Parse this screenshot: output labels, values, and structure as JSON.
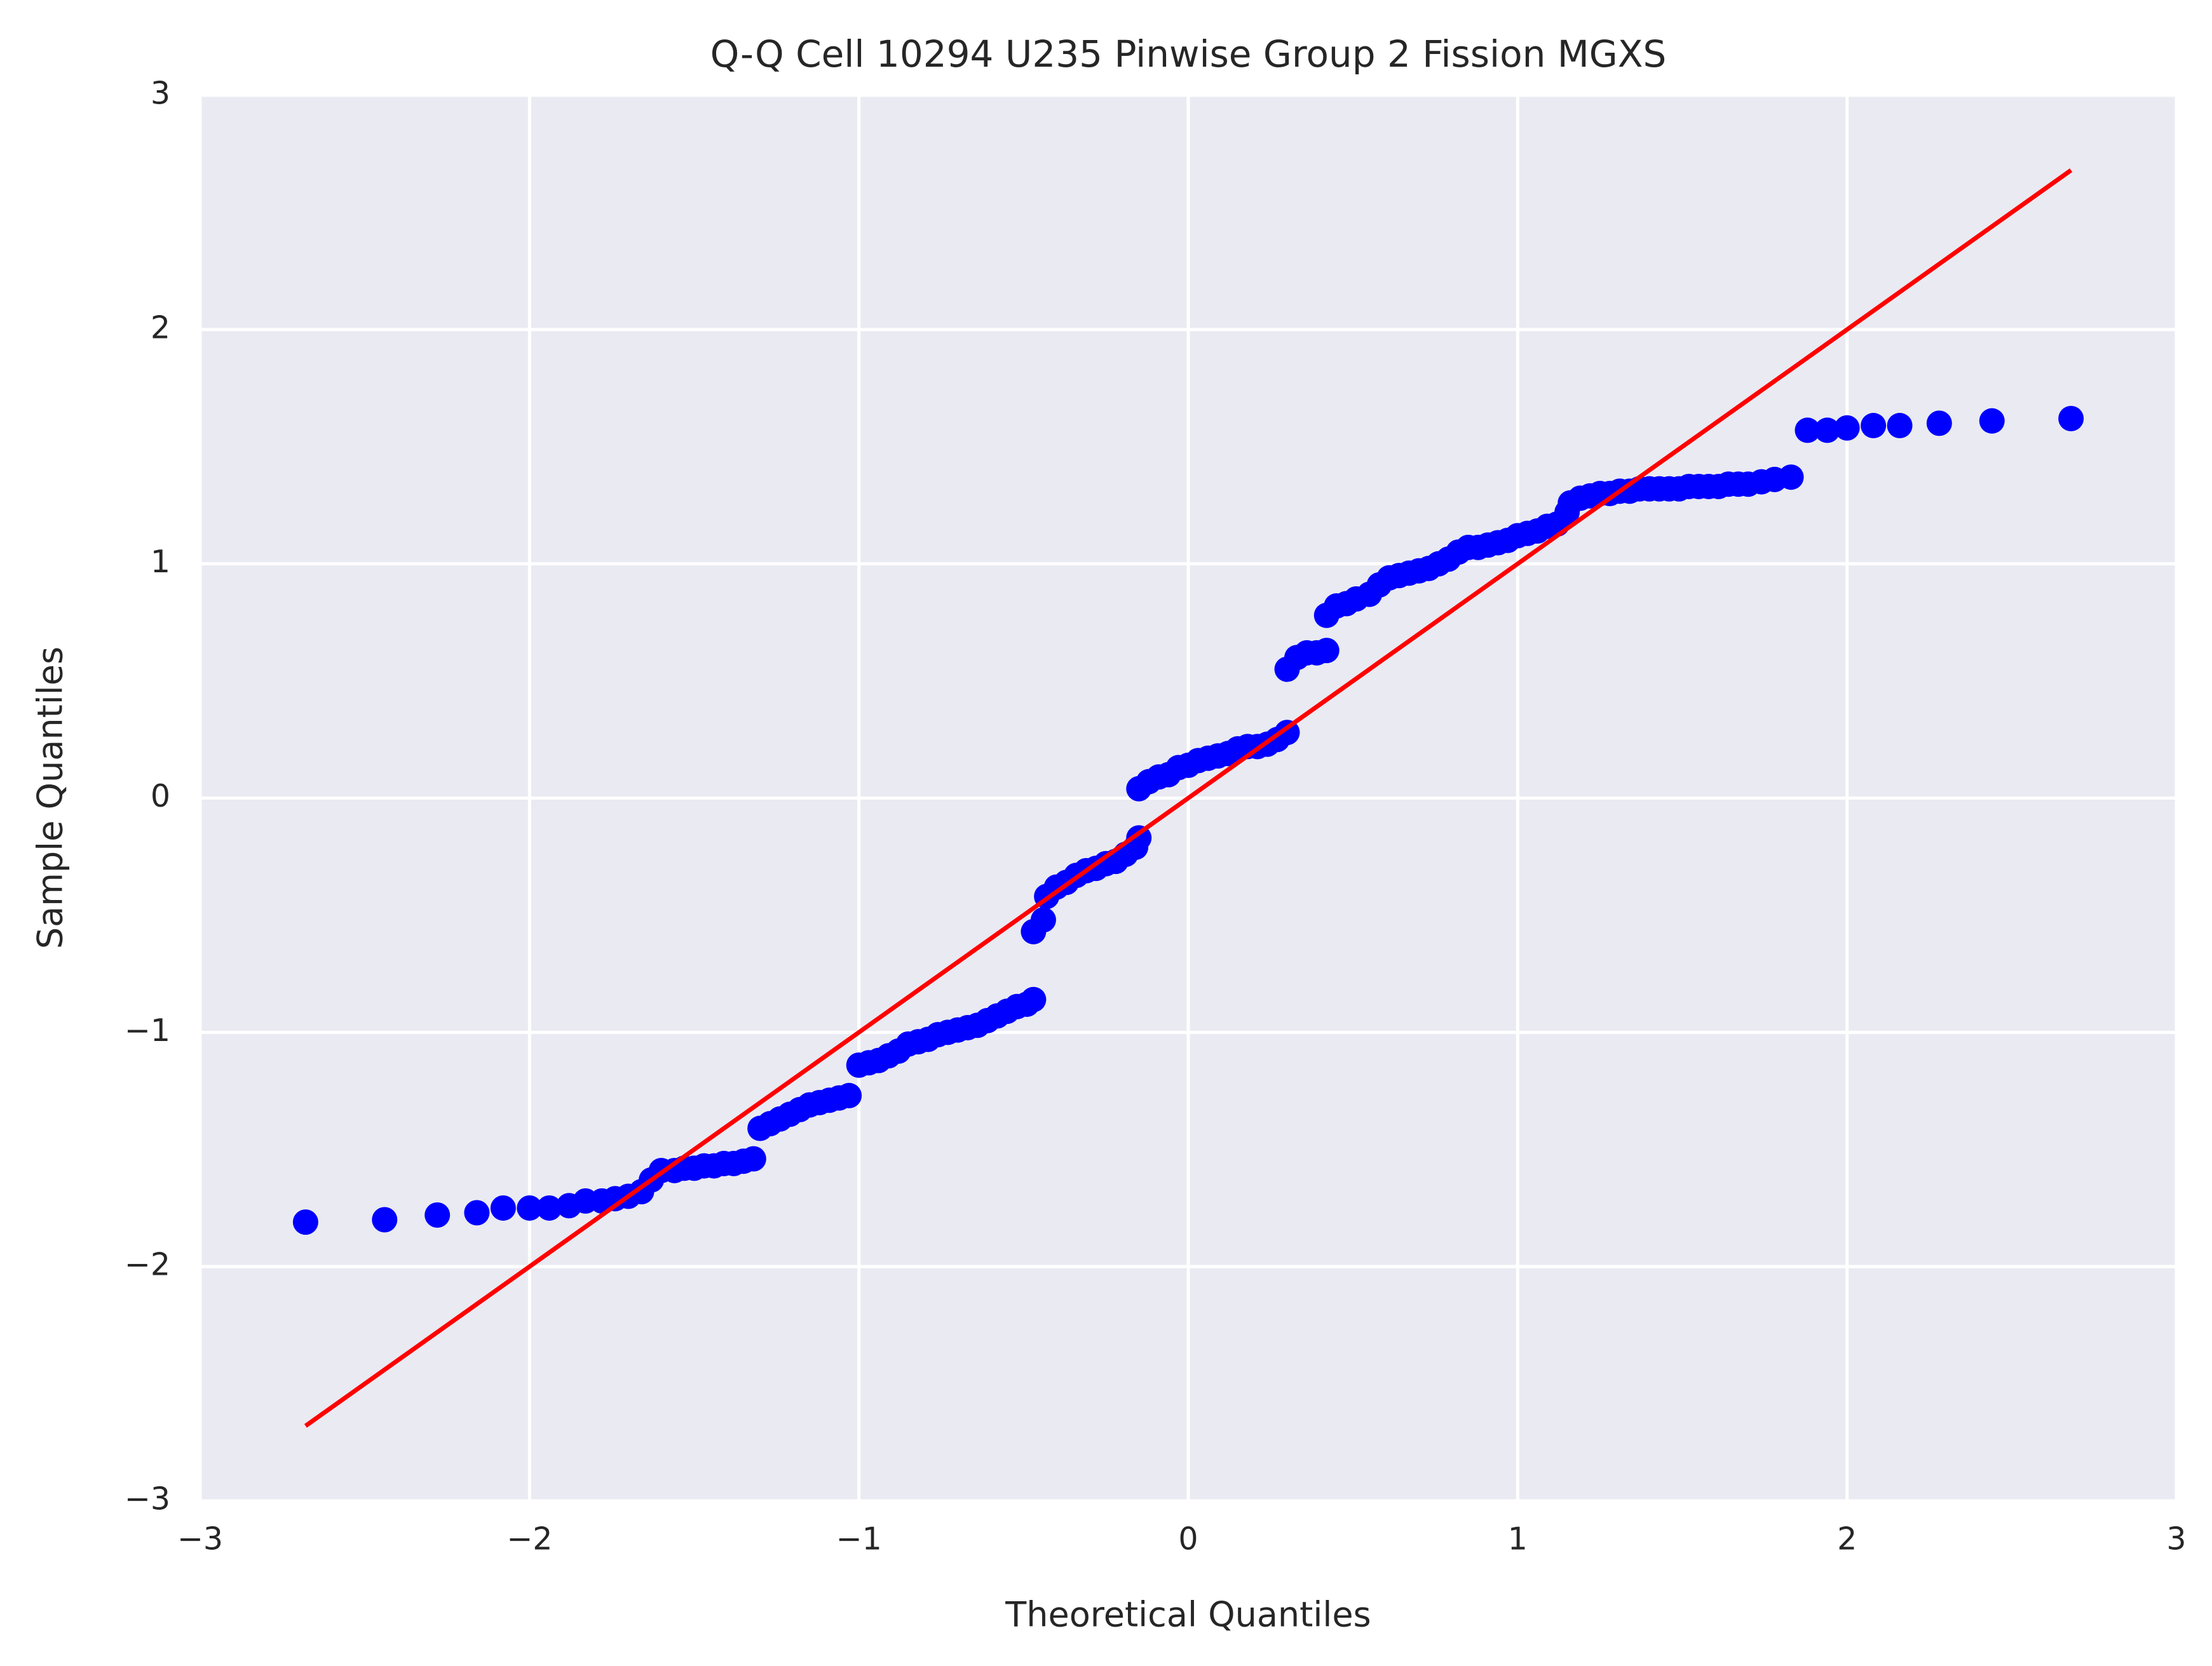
{
  "chart_data": {
    "type": "scatter",
    "title": "Q-Q Cell 10294 U235 Pinwise Group 2 Fission MGXS",
    "x_label": "Theoretical Quantiles",
    "y_label": "Sample Quantiles",
    "xlim": [
      -3,
      3
    ],
    "ylim": [
      -3,
      3
    ],
    "xticks": [
      {
        "value": -3,
        "label": "−3"
      },
      {
        "value": -2,
        "label": "−2"
      },
      {
        "value": -1,
        "label": "−1"
      },
      0,
      1,
      2,
      3
    ],
    "yticks": [
      {
        "value": -3,
        "label": "−3"
      },
      {
        "value": -2,
        "label": "−2"
      },
      {
        "value": -1,
        "label": "−1"
      },
      0,
      1,
      2,
      3
    ],
    "grid": true,
    "background": "#eaeaf2",
    "series": [
      {
        "type": "scatter",
        "color": "#0000ff",
        "x": [
          -2.68,
          -2.44,
          -2.28,
          -2.16,
          -2.08,
          -2.0,
          -1.94,
          -1.88,
          -1.83,
          -1.78,
          -1.74,
          -1.7,
          -1.66,
          -1.63,
          -1.6,
          -1.56,
          -1.53,
          -1.5,
          -1.47,
          -1.44,
          -1.41,
          -1.38,
          -1.35,
          -1.32,
          -1.3,
          -1.27,
          -1.24,
          -1.21,
          -1.18,
          -1.15,
          -1.12,
          -1.09,
          -1.06,
          -1.03,
          -1.0,
          -0.97,
          -0.94,
          -0.91,
          -0.88,
          -0.85,
          -0.82,
          -0.79,
          -0.76,
          -0.73,
          -0.7,
          -0.67,
          -0.64,
          -0.61,
          -0.58,
          -0.55,
          -0.52,
          -0.49,
          -0.47,
          -0.47,
          -0.44,
          -0.43,
          -0.4,
          -0.37,
          -0.34,
          -0.31,
          -0.28,
          -0.25,
          -0.22,
          -0.19,
          -0.16,
          -0.15,
          -0.15,
          -0.12,
          -0.09,
          -0.06,
          -0.03,
          0.0,
          0.03,
          0.06,
          0.09,
          0.12,
          0.15,
          0.18,
          0.21,
          0.24,
          0.27,
          0.3,
          0.3,
          0.33,
          0.36,
          0.39,
          0.42,
          0.42,
          0.45,
          0.48,
          0.51,
          0.55,
          0.58,
          0.61,
          0.64,
          0.67,
          0.7,
          0.73,
          0.76,
          0.79,
          0.82,
          0.85,
          0.88,
          0.91,
          0.94,
          0.97,
          1.0,
          1.03,
          1.06,
          1.09,
          1.12,
          1.15,
          1.16,
          1.19,
          1.22,
          1.25,
          1.28,
          1.31,
          1.34,
          1.37,
          1.4,
          1.43,
          1.46,
          1.49,
          1.52,
          1.55,
          1.58,
          1.61,
          1.64,
          1.67,
          1.7,
          1.74,
          1.78,
          1.83,
          1.88,
          1.94,
          2.0,
          2.08,
          2.16,
          2.28,
          2.44,
          2.68
        ],
        "values": [
          -1.81,
          -1.8,
          -1.78,
          -1.77,
          -1.75,
          -1.75,
          -1.75,
          -1.74,
          -1.72,
          -1.72,
          -1.71,
          -1.7,
          -1.68,
          -1.63,
          -1.59,
          -1.59,
          -1.58,
          -1.58,
          -1.57,
          -1.57,
          -1.56,
          -1.56,
          -1.55,
          -1.54,
          -1.41,
          -1.39,
          -1.37,
          -1.35,
          -1.33,
          -1.31,
          -1.3,
          -1.29,
          -1.28,
          -1.27,
          -1.14,
          -1.13,
          -1.12,
          -1.1,
          -1.08,
          -1.05,
          -1.04,
          -1.03,
          -1.01,
          -1.0,
          -0.99,
          -0.98,
          -0.97,
          -0.95,
          -0.93,
          -0.91,
          -0.89,
          -0.88,
          -0.86,
          -0.57,
          -0.52,
          -0.42,
          -0.38,
          -0.36,
          -0.33,
          -0.31,
          -0.3,
          -0.28,
          -0.27,
          -0.24,
          -0.21,
          -0.17,
          0.04,
          0.07,
          0.09,
          0.1,
          0.13,
          0.14,
          0.16,
          0.17,
          0.18,
          0.19,
          0.21,
          0.22,
          0.22,
          0.23,
          0.25,
          0.28,
          0.55,
          0.6,
          0.62,
          0.62,
          0.63,
          0.78,
          0.82,
          0.83,
          0.85,
          0.87,
          0.91,
          0.94,
          0.95,
          0.96,
          0.97,
          0.98,
          1.0,
          1.02,
          1.05,
          1.07,
          1.07,
          1.08,
          1.09,
          1.1,
          1.12,
          1.13,
          1.14,
          1.16,
          1.17,
          1.22,
          1.26,
          1.28,
          1.29,
          1.3,
          1.3,
          1.31,
          1.31,
          1.32,
          1.32,
          1.32,
          1.32,
          1.32,
          1.33,
          1.33,
          1.33,
          1.33,
          1.34,
          1.34,
          1.34,
          1.35,
          1.36,
          1.37,
          1.57,
          1.57,
          1.58,
          1.59,
          1.59,
          1.6,
          1.61,
          1.62
        ]
      },
      {
        "type": "line",
        "color": "#ff0000",
        "x": [
          -2.68,
          2.68
        ],
        "values": [
          -2.68,
          2.68
        ]
      }
    ]
  }
}
